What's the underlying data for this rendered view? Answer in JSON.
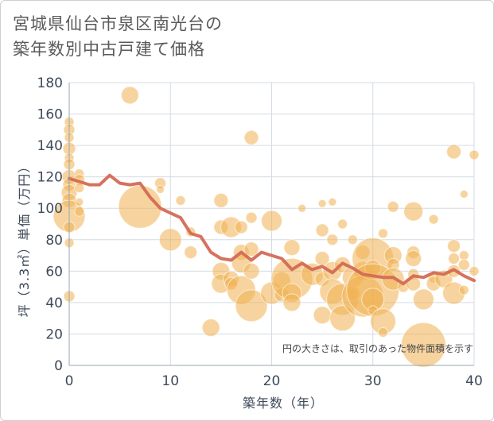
{
  "title_line1": "宮城県仙台市泉区南光台の",
  "title_line2": "築年数別中古戸建て価格",
  "chart_data": {
    "type": "scatter",
    "title": "宮城県仙台市泉区南光台の築年数別中古戸建て価格",
    "xlabel": "築年数（年）",
    "ylabel": "坪（3.3㎡）単価（万円）",
    "xlim": [
      0,
      40
    ],
    "ylim": [
      0,
      180
    ],
    "x_ticks": [
      0,
      10,
      20,
      30,
      40
    ],
    "y_ticks": [
      0,
      20,
      40,
      60,
      80,
      100,
      120,
      140,
      160,
      180
    ],
    "grid": true,
    "note": "円の大きさは、取引のあった物件面積を示す",
    "bubble_color": "#f0b050",
    "line_color": "#d46a55",
    "points": [
      {
        "x": 0,
        "y": 155,
        "s": 6
      },
      {
        "x": 0,
        "y": 150,
        "s": 7
      },
      {
        "x": 0,
        "y": 145,
        "s": 6
      },
      {
        "x": 0,
        "y": 138,
        "s": 8
      },
      {
        "x": 0,
        "y": 132,
        "s": 6
      },
      {
        "x": 0,
        "y": 128,
        "s": 7
      },
      {
        "x": 0,
        "y": 120,
        "s": 9
      },
      {
        "x": 0,
        "y": 115,
        "s": 8
      },
      {
        "x": 0,
        "y": 110,
        "s": 10
      },
      {
        "x": 0,
        "y": 105,
        "s": 9
      },
      {
        "x": 0,
        "y": 95,
        "s": 20
      },
      {
        "x": 0,
        "y": 88,
        "s": 7
      },
      {
        "x": 0,
        "y": 78,
        "s": 6
      },
      {
        "x": 0,
        "y": 44,
        "s": 7
      },
      {
        "x": 1,
        "y": 122,
        "s": 6
      },
      {
        "x": 1,
        "y": 118,
        "s": 7
      },
      {
        "x": 1,
        "y": 113,
        "s": 6
      },
      {
        "x": 1,
        "y": 104,
        "s": 5
      },
      {
        "x": 1,
        "y": 98,
        "s": 6
      },
      {
        "x": 6,
        "y": 172,
        "s": 11
      },
      {
        "x": 7,
        "y": 101,
        "s": 27
      },
      {
        "x": 9,
        "y": 116,
        "s": 7
      },
      {
        "x": 9,
        "y": 112,
        "s": 5
      },
      {
        "x": 10,
        "y": 80,
        "s": 14
      },
      {
        "x": 11,
        "y": 105,
        "s": 6
      },
      {
        "x": 12,
        "y": 85,
        "s": 6
      },
      {
        "x": 12,
        "y": 72,
        "s": 8
      },
      {
        "x": 14,
        "y": 24,
        "s": 11
      },
      {
        "x": 15,
        "y": 105,
        "s": 9
      },
      {
        "x": 15,
        "y": 88,
        "s": 9
      },
      {
        "x": 15,
        "y": 60,
        "s": 11
      },
      {
        "x": 15,
        "y": 52,
        "s": 12
      },
      {
        "x": 16,
        "y": 88,
        "s": 13
      },
      {
        "x": 16,
        "y": 55,
        "s": 10
      },
      {
        "x": 16,
        "y": 52,
        "s": 8
      },
      {
        "x": 17,
        "y": 88,
        "s": 8
      },
      {
        "x": 17,
        "y": 72,
        "s": 10
      },
      {
        "x": 17,
        "y": 65,
        "s": 12
      },
      {
        "x": 17,
        "y": 48,
        "s": 18
      },
      {
        "x": 18,
        "y": 145,
        "s": 9
      },
      {
        "x": 18,
        "y": 94,
        "s": 7
      },
      {
        "x": 18,
        "y": 74,
        "s": 9
      },
      {
        "x": 18,
        "y": 60,
        "s": 10
      },
      {
        "x": 18,
        "y": 38,
        "s": 20
      },
      {
        "x": 20,
        "y": 92,
        "s": 13
      },
      {
        "x": 20,
        "y": 46,
        "s": 14
      },
      {
        "x": 21,
        "y": 54,
        "s": 11
      },
      {
        "x": 21,
        "y": 45,
        "s": 9
      },
      {
        "x": 22,
        "y": 75,
        "s": 10
      },
      {
        "x": 22,
        "y": 55,
        "s": 26
      },
      {
        "x": 22,
        "y": 46,
        "s": 12
      },
      {
        "x": 22,
        "y": 40,
        "s": 11
      },
      {
        "x": 23,
        "y": 100,
        "s": 5
      },
      {
        "x": 24,
        "y": 58,
        "s": 14
      },
      {
        "x": 25,
        "y": 103,
        "s": 5
      },
      {
        "x": 25,
        "y": 86,
        "s": 8
      },
      {
        "x": 25,
        "y": 68,
        "s": 9
      },
      {
        "x": 25,
        "y": 55,
        "s": 9
      },
      {
        "x": 25,
        "y": 32,
        "s": 11
      },
      {
        "x": 26,
        "y": 104,
        "s": 5
      },
      {
        "x": 26,
        "y": 80,
        "s": 7
      },
      {
        "x": 26,
        "y": 60,
        "s": 12
      },
      {
        "x": 26,
        "y": 47,
        "s": 16
      },
      {
        "x": 27,
        "y": 90,
        "s": 6
      },
      {
        "x": 27,
        "y": 64,
        "s": 10
      },
      {
        "x": 27,
        "y": 42,
        "s": 20
      },
      {
        "x": 27,
        "y": 30,
        "s": 16
      },
      {
        "x": 28,
        "y": 80,
        "s": 6
      },
      {
        "x": 28,
        "y": 56,
        "s": 13
      },
      {
        "x": 28,
        "y": 46,
        "s": 9
      },
      {
        "x": 29,
        "y": 72,
        "s": 9
      },
      {
        "x": 29,
        "y": 60,
        "s": 12
      },
      {
        "x": 29,
        "y": 44,
        "s": 26
      },
      {
        "x": 30,
        "y": 68,
        "s": 26
      },
      {
        "x": 30,
        "y": 62,
        "s": 10
      },
      {
        "x": 30,
        "y": 48,
        "s": 33
      },
      {
        "x": 30,
        "y": 42,
        "s": 14
      },
      {
        "x": 30,
        "y": 35,
        "s": 6
      },
      {
        "x": 31,
        "y": 84,
        "s": 6
      },
      {
        "x": 31,
        "y": 28,
        "s": 16
      },
      {
        "x": 31,
        "y": 21,
        "s": 6
      },
      {
        "x": 32,
        "y": 101,
        "s": 7
      },
      {
        "x": 32,
        "y": 70,
        "s": 11
      },
      {
        "x": 32,
        "y": 64,
        "s": 8
      },
      {
        "x": 32,
        "y": 55,
        "s": 14
      },
      {
        "x": 33,
        "y": 50,
        "s": 7
      },
      {
        "x": 34,
        "y": 98,
        "s": 12
      },
      {
        "x": 34,
        "y": 72,
        "s": 8
      },
      {
        "x": 34,
        "y": 68,
        "s": 10
      },
      {
        "x": 34,
        "y": 58,
        "s": 7
      },
      {
        "x": 34,
        "y": 52,
        "s": 9
      },
      {
        "x": 35,
        "y": 42,
        "s": 13
      },
      {
        "x": 35,
        "y": 13,
        "s": 28
      },
      {
        "x": 36,
        "y": 93,
        "s": 6
      },
      {
        "x": 36,
        "y": 56,
        "s": 7
      },
      {
        "x": 36,
        "y": 52,
        "s": 9
      },
      {
        "x": 37,
        "y": 55,
        "s": 11
      },
      {
        "x": 38,
        "y": 136,
        "s": 9
      },
      {
        "x": 38,
        "y": 76,
        "s": 8
      },
      {
        "x": 38,
        "y": 68,
        "s": 7
      },
      {
        "x": 38,
        "y": 60,
        "s": 8
      },
      {
        "x": 38,
        "y": 46,
        "s": 14
      },
      {
        "x": 39,
        "y": 109,
        "s": 5
      },
      {
        "x": 39,
        "y": 70,
        "s": 6
      },
      {
        "x": 39,
        "y": 64,
        "s": 7
      },
      {
        "x": 39,
        "y": 48,
        "s": 6
      },
      {
        "x": 40,
        "y": 134,
        "s": 6
      },
      {
        "x": 40,
        "y": 60,
        "s": 6
      }
    ],
    "trend": [
      {
        "x": 0,
        "y": 119
      },
      {
        "x": 1,
        "y": 117
      },
      {
        "x": 2,
        "y": 115
      },
      {
        "x": 3,
        "y": 115
      },
      {
        "x": 4,
        "y": 121
      },
      {
        "x": 5,
        "y": 116
      },
      {
        "x": 6,
        "y": 115
      },
      {
        "x": 7,
        "y": 116
      },
      {
        "x": 8,
        "y": 107
      },
      {
        "x": 9,
        "y": 100
      },
      {
        "x": 10,
        "y": 97
      },
      {
        "x": 11,
        "y": 94
      },
      {
        "x": 12,
        "y": 84
      },
      {
        "x": 13,
        "y": 82
      },
      {
        "x": 14,
        "y": 72
      },
      {
        "x": 15,
        "y": 68
      },
      {
        "x": 16,
        "y": 67
      },
      {
        "x": 17,
        "y": 72
      },
      {
        "x": 18,
        "y": 67
      },
      {
        "x": 19,
        "y": 72
      },
      {
        "x": 20,
        "y": 70
      },
      {
        "x": 21,
        "y": 68
      },
      {
        "x": 22,
        "y": 61
      },
      {
        "x": 23,
        "y": 65
      },
      {
        "x": 24,
        "y": 61
      },
      {
        "x": 25,
        "y": 63
      },
      {
        "x": 26,
        "y": 59
      },
      {
        "x": 27,
        "y": 65
      },
      {
        "x": 28,
        "y": 62
      },
      {
        "x": 29,
        "y": 58
      },
      {
        "x": 30,
        "y": 57
      },
      {
        "x": 31,
        "y": 56
      },
      {
        "x": 32,
        "y": 56
      },
      {
        "x": 33,
        "y": 52
      },
      {
        "x": 34,
        "y": 57
      },
      {
        "x": 35,
        "y": 56
      },
      {
        "x": 36,
        "y": 59
      },
      {
        "x": 37,
        "y": 58
      },
      {
        "x": 38,
        "y": 61
      },
      {
        "x": 39,
        "y": 57
      },
      {
        "x": 40,
        "y": 54
      }
    ]
  }
}
